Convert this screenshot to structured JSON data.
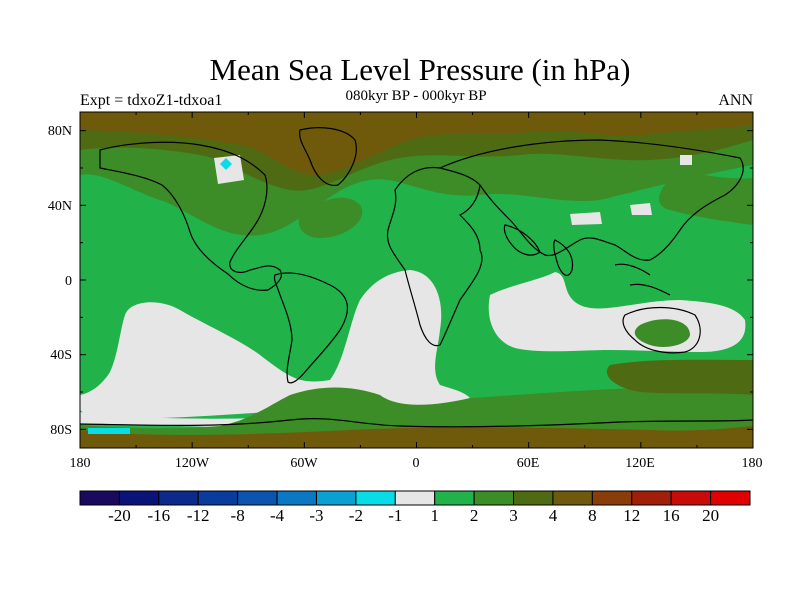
{
  "title": "Mean Sea Level Pressure (in hPa)",
  "subtitle": "080kyr BP - 000kyr BP",
  "experiment": "Expt = tdxoZ1-tdxoa1",
  "season": "ANN",
  "lat_labels": [
    "80N",
    "40N",
    "0",
    "40S",
    "80S"
  ],
  "lon_labels": [
    "180",
    "120W",
    "60W",
    "0",
    "60E",
    "120E",
    "180"
  ],
  "colorbar": {
    "labels": [
      "-20",
      "-16",
      "-12",
      "-8",
      "-4",
      "-3",
      "-2",
      "-1",
      "1",
      "2",
      "3",
      "4",
      "8",
      "12",
      "16",
      "20"
    ],
    "colors": [
      "#1a0a5e",
      "#0a1478",
      "#0c2a8c",
      "#0a3c9e",
      "#0b55b0",
      "#0a78c2",
      "#0aa0d4",
      "#08dce6",
      "#e6e6e6",
      "#22b24a",
      "#3c8c28",
      "#4e6b14",
      "#6e5a0a",
      "#8a3c0a",
      "#a01e0a",
      "#c80a0a",
      "#e00000"
    ]
  },
  "map_colors": {
    "ocean_background": "#22b24a",
    "neutral": "#e6e6e6",
    "band_mid": "#3c8c28",
    "band_high": "#4e6b14",
    "band_highest": "#6e5a0a",
    "cyan": "#08dce6"
  }
}
